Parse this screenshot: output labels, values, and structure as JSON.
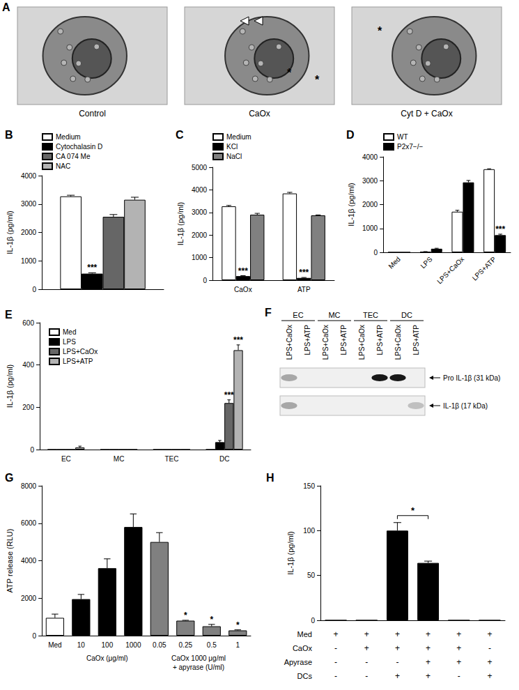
{
  "panel_a": {
    "title": "A",
    "images": [
      {
        "caption": "Control"
      },
      {
        "caption": "CaOx",
        "annotations": [
          "*",
          "*"
        ]
      },
      {
        "caption": "Cyt D + CaOx",
        "annotations": [
          "*"
        ]
      }
    ]
  },
  "chart_data": [
    {
      "title": "B",
      "type": "bar",
      "categories": [
        null
      ],
      "ylabel": "IL-1β (pg/ml)",
      "ylim": [
        0,
        4000
      ],
      "yticks": [
        0,
        1000,
        2000,
        3000,
        4000
      ],
      "grid": false,
      "legend": "top-left",
      "series": [
        {
          "name": "Medium",
          "color": "#ffffff",
          "values": [
            3270
          ],
          "errors": [
            40
          ]
        },
        {
          "name": "Cytochalasin D",
          "color": "#000000",
          "values": [
            550
          ],
          "errors": [
            30
          ]
        },
        {
          "name": "CA 074 Me",
          "color": "#666666",
          "values": [
            2550
          ],
          "errors": [
            80
          ]
        },
        {
          "name": "NAC",
          "color": "#b3b3b3",
          "values": [
            3150
          ],
          "errors": [
            90
          ]
        }
      ],
      "annotations": [
        {
          "series": "Cytochalasin D",
          "index": 0,
          "text": "***"
        }
      ]
    },
    {
      "title": "C",
      "type": "bar",
      "categories": [
        "CaOx",
        "ATP"
      ],
      "ylabel": "IL-1β (pg/ml)",
      "ylim": [
        0,
        5000
      ],
      "yticks": [
        0,
        1000,
        2000,
        3000,
        4000,
        5000
      ],
      "grid": false,
      "legend": "top-left",
      "series": [
        {
          "name": "Medium",
          "color": "#ffffff",
          "values": [
            3270,
            3840
          ],
          "errors": [
            40,
            50
          ]
        },
        {
          "name": "KCl",
          "color": "#000000",
          "values": [
            180,
            100
          ],
          "errors": [
            20,
            20
          ]
        },
        {
          "name": "NaCl",
          "color": "#808080",
          "values": [
            2900,
            2870
          ],
          "errors": [
            60,
            20
          ]
        }
      ],
      "annotations": [
        {
          "series": "KCl",
          "index": 0,
          "text": "***"
        },
        {
          "series": "KCl",
          "index": 1,
          "text": "***"
        }
      ]
    },
    {
      "title": "D",
      "type": "bar",
      "categories": [
        "Med",
        "LPS",
        "LPS+CaOx",
        "LPS+ATP"
      ],
      "ylabel": "IL-1β (pg/ml)",
      "ylim": [
        0,
        4000
      ],
      "yticks": [
        0,
        1000,
        2000,
        3000,
        4000
      ],
      "grid": false,
      "legend": "top-left",
      "series": [
        {
          "name": "WT",
          "color": "#ffffff",
          "values": [
            0,
            20,
            1700,
            3480
          ],
          "errors": [
            0,
            10,
            60,
            20
          ]
        },
        {
          "name": "P2x7−/−",
          "color": "#000000",
          "values": [
            0,
            150,
            2930,
            720
          ],
          "errors": [
            0,
            20,
            80,
            40
          ]
        }
      ],
      "annotations": [
        {
          "series": "P2x7−/−",
          "index": 3,
          "text": "***"
        }
      ]
    },
    {
      "title": "E",
      "type": "bar",
      "categories": [
        "EC",
        "MC",
        "TEC",
        "DC"
      ],
      "ylabel": "IL-1β (pg/ml)",
      "ylim": [
        0,
        600
      ],
      "yticks": [
        0,
        200,
        400,
        600
      ],
      "grid": false,
      "legend": "top-left",
      "series": [
        {
          "name": "Med",
          "color": "#ffffff",
          "values": [
            0,
            0,
            0,
            0
          ],
          "errors": [
            0,
            0,
            0,
            0
          ]
        },
        {
          "name": "LPS",
          "color": "#000000",
          "values": [
            0,
            0,
            0,
            35
          ],
          "errors": [
            0,
            0,
            0,
            8
          ]
        },
        {
          "name": "LPS+CaOx",
          "color": "#666666",
          "values": [
            0,
            0,
            0,
            220
          ],
          "errors": [
            0,
            0,
            0,
            15
          ]
        },
        {
          "name": "LPS+ATP",
          "color": "#b3b3b3",
          "values": [
            10,
            0,
            0,
            470
          ],
          "errors": [
            6,
            0,
            0,
            25
          ]
        }
      ],
      "annotations": [
        {
          "series": "LPS+CaOx",
          "index": 3,
          "text": "***"
        },
        {
          "series": "LPS+ATP",
          "index": 3,
          "text": "***"
        }
      ]
    },
    {
      "title": "G",
      "type": "bar",
      "categories": [
        "Med",
        "10",
        "100",
        "1000",
        "0.05",
        "0.25",
        "0.5",
        "1"
      ],
      "ylabel": "ATP release (RLU)",
      "ylim": [
        0,
        8000
      ],
      "yticks": [
        0,
        2000,
        4000,
        6000,
        8000
      ],
      "grid": false,
      "values": [
        950,
        1950,
        3600,
        5800,
        5000,
        800,
        500,
        280
      ],
      "errors": [
        200,
        250,
        500,
        700,
        500,
        20,
        100,
        30
      ],
      "colors": [
        "#ffffff",
        "#000000",
        "#000000",
        "#000000",
        "#808080",
        "#808080",
        "#808080",
        "#808080"
      ],
      "groups": [
        {
          "label": [
            "CaOx (μg/ml)"
          ],
          "categories": [
            "10",
            "100",
            "1000"
          ]
        },
        {
          "label": [
            "CaOx 1000 μg/ml",
            "+ apyrase (U/ml)"
          ],
          "categories": [
            "0.05",
            "0.25",
            "0.5",
            "1"
          ]
        }
      ],
      "annotations": [
        {
          "index": 5,
          "text": "*"
        },
        {
          "index": 6,
          "text": "*"
        },
        {
          "index": 7,
          "text": "*"
        }
      ]
    },
    {
      "title": "H",
      "type": "bar",
      "categories": [
        null,
        null,
        null,
        null,
        null,
        null
      ],
      "ylabel": "IL-1β (pg/ml)",
      "ylim": [
        0,
        150
      ],
      "yticks": [
        0,
        50,
        100,
        150
      ],
      "grid": false,
      "values": [
        0,
        0,
        100,
        64,
        0,
        0
      ],
      "errors": [
        0,
        0,
        9,
        2,
        0,
        0
      ],
      "color": "#000000",
      "conditions": [
        {
          "label": "Med",
          "marks": [
            "+",
            "+",
            "+",
            "+",
            "+",
            "+"
          ]
        },
        {
          "label": "CaOx",
          "marks": [
            "-",
            "+",
            "+",
            "+",
            "+",
            "-"
          ]
        },
        {
          "label": "Apyrase",
          "marks": [
            "-",
            "-",
            "-",
            "+",
            "+",
            "+"
          ]
        },
        {
          "label": "DCs",
          "marks": [
            "-",
            "-",
            "+",
            "+",
            "-",
            "+"
          ]
        }
      ],
      "comparisons": [
        {
          "from": 2,
          "to": 3,
          "text": "*"
        }
      ]
    }
  ],
  "panel_f": {
    "title": "F",
    "groups": [
      {
        "label": "EC",
        "lanes": [
          "LPS+CaOx",
          "LPS+ATP"
        ]
      },
      {
        "label": "MC",
        "lanes": [
          "LPS+CaOx",
          "LPS+ATP"
        ]
      },
      {
        "label": "TEC",
        "lanes": [
          "LPS+CaOx",
          "LPS+ATP"
        ]
      },
      {
        "label": "DC",
        "lanes": [
          "LPS+CaOx",
          "LPS+ATP"
        ]
      }
    ],
    "rows": [
      {
        "label": "Pro IL-1β (31 kDa)",
        "intensity": [
          0.3,
          0,
          0,
          0,
          0,
          0.9,
          0.9,
          0
        ]
      },
      {
        "label": "IL-1β (17 kDa)",
        "intensity": [
          0.3,
          0,
          0,
          0,
          0,
          0,
          0,
          0.2
        ]
      }
    ]
  }
}
